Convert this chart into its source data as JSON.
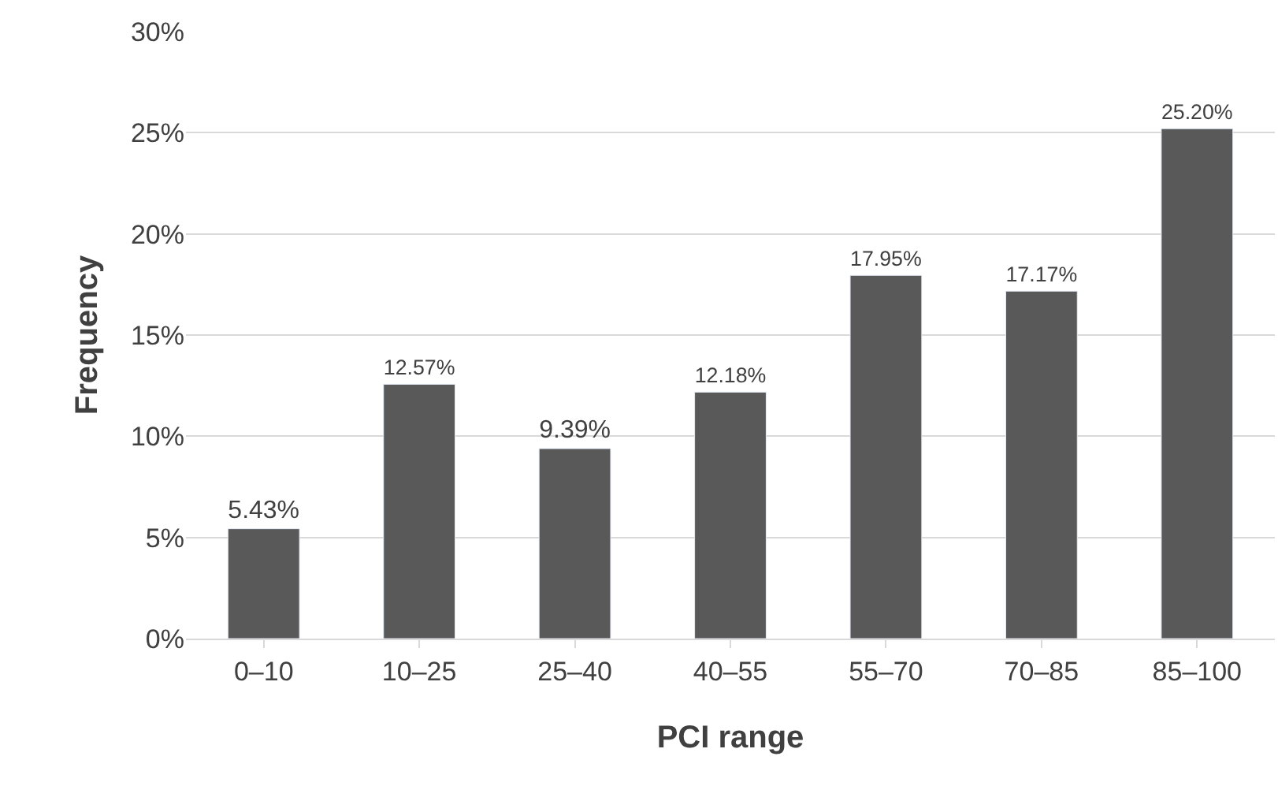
{
  "chart_data": {
    "type": "bar",
    "xlabel": "PCI range",
    "ylabel": "Frequency",
    "categories": [
      "0–10",
      "10–25",
      "25–40",
      "40–55",
      "55–70",
      "70–85",
      "85–100"
    ],
    "values": [
      5.43,
      12.57,
      9.39,
      12.18,
      17.95,
      17.17,
      25.2
    ],
    "value_labels": [
      "5.43%",
      "12.57%",
      "9.39%",
      "12.18%",
      "17.95%",
      "17.17%",
      "25.20%"
    ],
    "color": "#595959",
    "ylim": [
      0,
      30
    ],
    "yticks": [
      {
        "value": 0,
        "label": "0%"
      },
      {
        "value": 5,
        "label": "5%"
      },
      {
        "value": 10,
        "label": "10%"
      },
      {
        "value": 15,
        "label": "15%"
      },
      {
        "value": 20,
        "label": "20%"
      },
      {
        "value": 25,
        "label": "25%"
      },
      {
        "value": 30,
        "label": "30%"
      }
    ],
    "grid": "y",
    "legend": false
  }
}
